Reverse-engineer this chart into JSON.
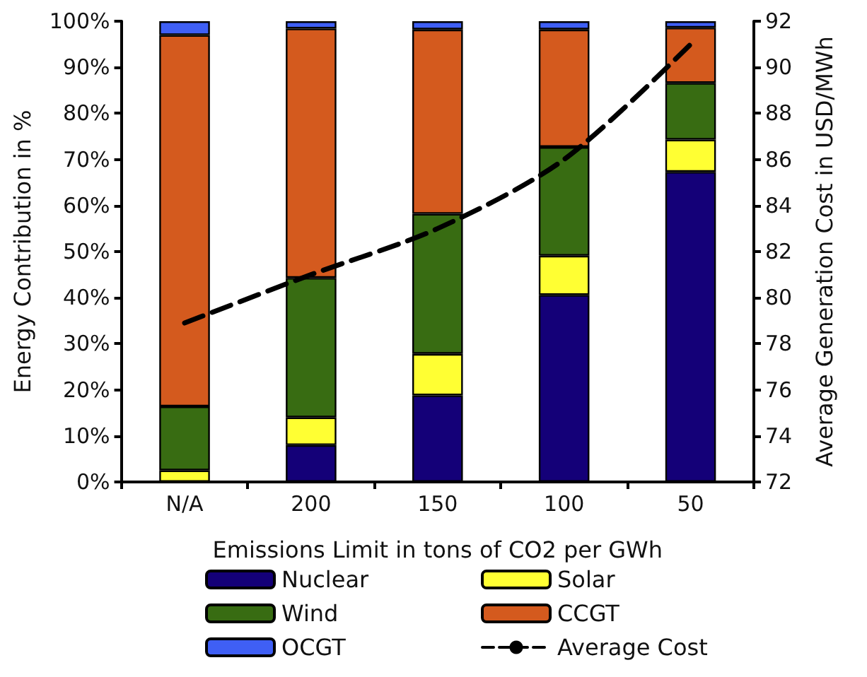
{
  "chart_data": {
    "type": "bar",
    "stacked": true,
    "xlabel": "Emissions Limit in tons of CO2 per GWh",
    "ylabel": "Energy Contribution in %",
    "y2label": "Average Generation Cost in USD/MWh",
    "categories": [
      "N/A",
      "200",
      "150",
      "100",
      "50"
    ],
    "series": [
      {
        "name": "Nuclear",
        "color": "#140078",
        "values": [
          0,
          8,
          18.8,
          40.6,
          67.3
        ]
      },
      {
        "name": "Solar",
        "color": "#ffff33",
        "values": [
          2.5,
          6,
          9,
          8.5,
          7
        ]
      },
      {
        "name": "Wind",
        "color": "#386c12",
        "values": [
          13.9,
          30.3,
          30.4,
          23.6,
          12.3
        ]
      },
      {
        "name": "CCGT",
        "color": "#d45a1e",
        "values": [
          80.6,
          54.1,
          40,
          25.5,
          12
        ]
      },
      {
        "name": "OCGT",
        "color": "#3f5ff5",
        "values": [
          3,
          1.6,
          1.8,
          1.8,
          1.4
        ]
      },
      {
        "name": "Average Cost",
        "type": "line",
        "axis": "y2",
        "color": "#000000",
        "line_style": "dashed",
        "marker": "none",
        "values": [
          78.9,
          81,
          83,
          86,
          91
        ]
      }
    ],
    "ylim": [
      0,
      100
    ],
    "yticks": [
      {
        "value": 0,
        "label": "0%"
      },
      {
        "value": 10,
        "label": "10%"
      },
      {
        "value": 20,
        "label": "20%"
      },
      {
        "value": 30,
        "label": "30%"
      },
      {
        "value": 40,
        "label": "40%"
      },
      {
        "value": 50,
        "label": "50%"
      },
      {
        "value": 60,
        "label": "60%"
      },
      {
        "value": 70,
        "label": "70%"
      },
      {
        "value": 80,
        "label": "80%"
      },
      {
        "value": 90,
        "label": "90%"
      },
      {
        "value": 100,
        "label": "100%"
      }
    ],
    "y2lim": [
      72,
      92
    ],
    "y2ticks": [
      72,
      74,
      76,
      78,
      80,
      82,
      84,
      86,
      88,
      90,
      92
    ],
    "grid": false,
    "legend": "bottom"
  }
}
